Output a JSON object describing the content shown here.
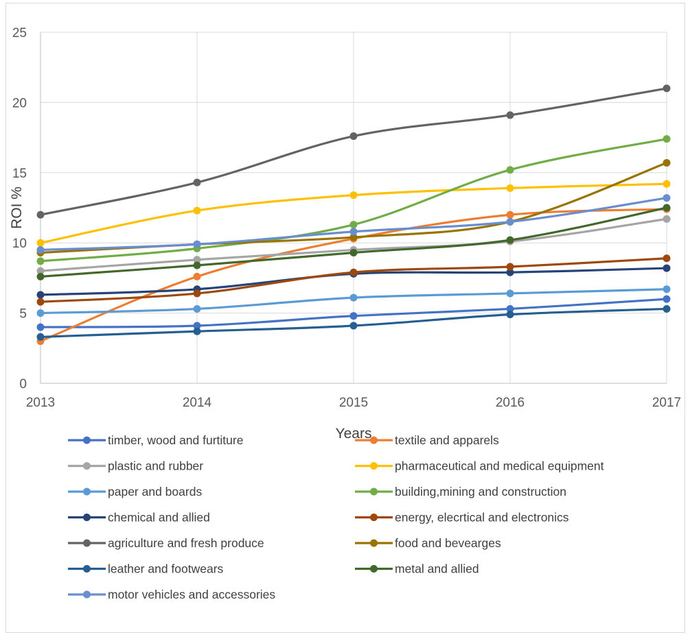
{
  "chart_data": {
    "type": "line",
    "xlabel": "Years",
    "ylabel": "ROI %",
    "x": [
      2013,
      2014,
      2015,
      2016,
      2017
    ],
    "ylim": [
      0,
      25
    ],
    "yticks": [
      0,
      5,
      10,
      15,
      20,
      25
    ],
    "grid": true,
    "smooth": true,
    "legend_position": "bottom",
    "series": [
      {
        "name": "timber, wood and furtiture",
        "color": "#4472C4",
        "values": [
          4.0,
          4.1,
          4.8,
          5.3,
          6.0
        ]
      },
      {
        "name": "textile and apparels",
        "color": "#ED7D31",
        "values": [
          3.0,
          7.6,
          10.3,
          12.0,
          12.4
        ]
      },
      {
        "name": "plastic and rubber",
        "color": "#A5A5A5",
        "values": [
          8.0,
          8.8,
          9.5,
          10.1,
          11.7
        ]
      },
      {
        "name": "pharmaceutical and medical equipment",
        "color": "#FFC000",
        "values": [
          10.0,
          12.3,
          13.4,
          13.9,
          14.2
        ]
      },
      {
        "name": "paper and boards",
        "color": "#5B9BD5",
        "values": [
          5.0,
          5.3,
          6.1,
          6.4,
          6.7
        ]
      },
      {
        "name": "building,mining and construction",
        "color": "#70AD47",
        "values": [
          8.7,
          9.6,
          11.3,
          15.2,
          17.4
        ]
      },
      {
        "name": "chemical and allied",
        "color": "#264478",
        "values": [
          6.3,
          6.7,
          7.8,
          7.9,
          8.2
        ]
      },
      {
        "name": "energy, elecrtical and electronics",
        "color": "#9E480E",
        "values": [
          5.8,
          6.4,
          7.9,
          8.3,
          8.9
        ]
      },
      {
        "name": "agriculture and fresh produce",
        "color": "#636363",
        "values": [
          12.0,
          14.3,
          17.6,
          19.1,
          21.0
        ]
      },
      {
        "name": "food and bevearges",
        "color": "#997300",
        "values": [
          9.3,
          9.9,
          10.4,
          11.5,
          15.7
        ]
      },
      {
        "name": "leather and footwears",
        "color": "#255E91",
        "values": [
          3.3,
          3.7,
          4.1,
          4.9,
          5.3
        ]
      },
      {
        "name": "metal and allied",
        "color": "#43682B",
        "values": [
          7.6,
          8.4,
          9.3,
          10.2,
          12.5
        ]
      },
      {
        "name": "motor vehicles and accessories",
        "color": "#698ED0",
        "values": [
          9.5,
          9.9,
          10.8,
          11.5,
          13.2
        ]
      }
    ]
  }
}
